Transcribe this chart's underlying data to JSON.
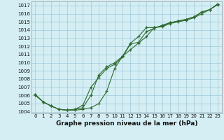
{
  "title": "Graphe pression niveau de la mer (hPa)",
  "xlabel_hours": [
    0,
    1,
    2,
    3,
    4,
    5,
    6,
    7,
    8,
    9,
    10,
    11,
    12,
    13,
    14,
    15,
    16,
    17,
    18,
    19,
    20,
    21,
    22,
    23
  ],
  "line1": [
    1006.0,
    1005.2,
    1004.7,
    1004.3,
    1004.2,
    1004.2,
    1004.3,
    1004.5,
    1005.0,
    1006.5,
    1009.3,
    1010.8,
    1011.6,
    1012.4,
    1013.2,
    1014.3,
    1014.4,
    1014.8,
    1015.0,
    1015.2,
    1015.5,
    1016.0,
    1016.5,
    1017.1
  ],
  "line2": [
    1006.1,
    1005.2,
    1004.7,
    1004.3,
    1004.2,
    1004.3,
    1004.8,
    1007.0,
    1008.2,
    1009.3,
    1009.8,
    1010.7,
    1012.3,
    1012.5,
    1013.8,
    1014.2,
    1014.6,
    1014.9,
    1015.1,
    1015.3,
    1015.6,
    1016.2,
    1016.5,
    1017.2
  ],
  "line3": [
    1006.1,
    1005.2,
    1004.7,
    1004.3,
    1004.2,
    1004.3,
    1004.5,
    1006.0,
    1008.5,
    1009.5,
    1010.0,
    1010.8,
    1012.4,
    1013.2,
    1014.3,
    1014.3,
    1014.5,
    1014.9,
    1015.1,
    1015.3,
    1015.6,
    1016.2,
    1016.5,
    1017.2
  ],
  "line_color": "#2d6a2d",
  "bg_color": "#d4eef4",
  "grid_color": "#a0c8d8",
  "ylim_min": 1003.8,
  "ylim_max": 1017.5,
  "yticks": [
    1004,
    1005,
    1006,
    1007,
    1008,
    1009,
    1010,
    1011,
    1012,
    1013,
    1014,
    1015,
    1016,
    1017
  ],
  "marker": "+",
  "markersize": 3,
  "linewidth": 0.8,
  "tick_fontsize": 5.0,
  "xlabel_fontsize": 6.5,
  "fig_width": 3.2,
  "fig_height": 2.0,
  "dpi": 100
}
